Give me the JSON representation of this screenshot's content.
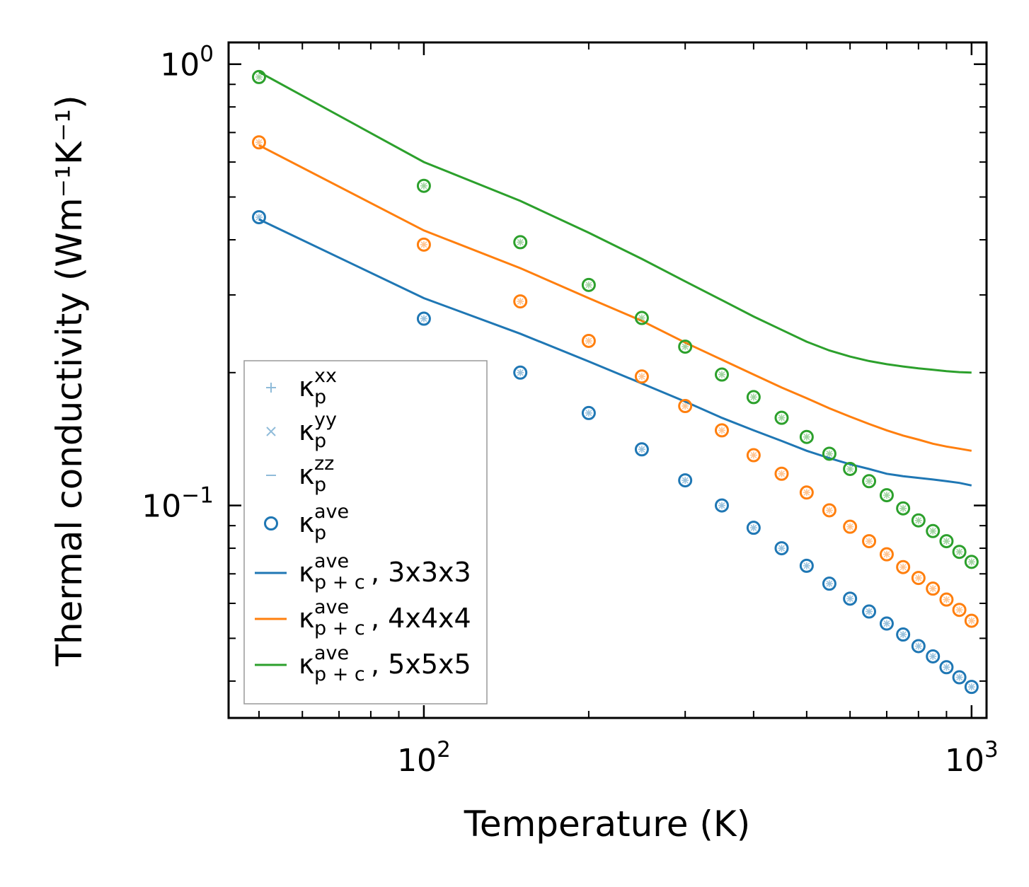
{
  "chart_data": {
    "type": "scatter",
    "title": "",
    "xlabel": "Temperature (K)",
    "ylabel": "Thermal conductivity (Wm⁻¹K⁻¹)",
    "xscale": "log",
    "yscale": "log",
    "xlim": [
      44,
      1065
    ],
    "ylim": [
      0.033,
      1.12
    ],
    "x_ticks": [
      {
        "value": 100,
        "base": "10",
        "exp": "2"
      },
      {
        "value": 1000,
        "base": "10",
        "exp": "3"
      }
    ],
    "y_ticks": [
      {
        "value": 0.1,
        "base": "10",
        "exp": "−1"
      },
      {
        "value": 1,
        "base": "10",
        "exp": "0"
      }
    ],
    "colors": {
      "c3": "#1f77b4",
      "c4": "#ff7f0e",
      "c5": "#2ca02c"
    },
    "line_series": [
      {
        "name": "κp+c ave, 3x3x3",
        "color": "#1f77b4",
        "x": [
          50,
          100,
          150,
          200,
          250,
          300,
          350,
          400,
          450,
          500,
          550,
          600,
          650,
          700,
          750,
          800,
          850,
          900,
          950,
          1000
        ],
        "y": [
          0.445,
          0.295,
          0.245,
          0.212,
          0.189,
          0.172,
          0.158,
          0.148,
          0.14,
          0.133,
          0.128,
          0.124,
          0.121,
          0.118,
          0.1165,
          0.1155,
          0.1145,
          0.1135,
          0.1125,
          0.111
        ]
      },
      {
        "name": "κp+c ave, 4x4x4",
        "color": "#ff7f0e",
        "x": [
          50,
          100,
          150,
          200,
          250,
          300,
          350,
          400,
          450,
          500,
          550,
          600,
          650,
          700,
          750,
          800,
          850,
          900,
          950,
          1000
        ],
        "y": [
          0.655,
          0.42,
          0.345,
          0.295,
          0.262,
          0.234,
          0.214,
          0.198,
          0.185,
          0.175,
          0.166,
          0.159,
          0.153,
          0.148,
          0.144,
          0.141,
          0.138,
          0.136,
          0.1345,
          0.133
        ]
      },
      {
        "name": "κp+c ave, 5x5x5",
        "color": "#2ca02c",
        "x": [
          50,
          100,
          150,
          200,
          250,
          300,
          350,
          400,
          450,
          500,
          550,
          600,
          650,
          700,
          750,
          800,
          850,
          900,
          950,
          1000
        ],
        "y": [
          0.96,
          0.6,
          0.49,
          0.415,
          0.362,
          0.322,
          0.292,
          0.268,
          0.25,
          0.235,
          0.2245,
          0.2175,
          0.2125,
          0.209,
          0.2065,
          0.2045,
          0.203,
          0.2015,
          0.2005,
          0.2
        ]
      }
    ],
    "marker_series": [
      {
        "name": "κp ave, 3x3x3",
        "color": "#1f77b4",
        "x": [
          50,
          100,
          150,
          200,
          250,
          300,
          350,
          400,
          450,
          500,
          550,
          600,
          650,
          700,
          750,
          800,
          850,
          900,
          950,
          1000
        ],
        "y": [
          0.45,
          0.265,
          0.2,
          0.162,
          0.134,
          0.114,
          0.1,
          0.089,
          0.08,
          0.073,
          0.0665,
          0.0615,
          0.0575,
          0.054,
          0.051,
          0.048,
          0.0455,
          0.043,
          0.0408,
          0.0388
        ]
      },
      {
        "name": "κp ave, 4x4x4",
        "color": "#ff7f0e",
        "x": [
          50,
          100,
          150,
          200,
          250,
          300,
          350,
          400,
          450,
          500,
          550,
          600,
          650,
          700,
          750,
          800,
          850,
          900,
          950,
          1000
        ],
        "y": [
          0.665,
          0.39,
          0.29,
          0.236,
          0.196,
          0.168,
          0.148,
          0.13,
          0.118,
          0.107,
          0.0975,
          0.0895,
          0.083,
          0.0775,
          0.0725,
          0.0685,
          0.0648,
          0.0612,
          0.058,
          0.0548
        ]
      },
      {
        "name": "κp ave, 5x5x5",
        "color": "#2ca02c",
        "x": [
          50,
          100,
          150,
          200,
          250,
          300,
          350,
          400,
          450,
          500,
          550,
          600,
          650,
          700,
          750,
          800,
          850,
          900,
          950,
          1000
        ],
        "y": [
          0.935,
          0.53,
          0.395,
          0.316,
          0.266,
          0.229,
          0.198,
          0.176,
          0.158,
          0.143,
          0.131,
          0.121,
          0.1135,
          0.1055,
          0.0985,
          0.0925,
          0.0875,
          0.083,
          0.0785,
          0.0745
        ]
      }
    ],
    "legend": {
      "location": "lower-left",
      "items": [
        {
          "kind": "plus",
          "main": "κ",
          "sup": "xx",
          "sub": "p",
          "tail": "",
          "color": "#1f77b4"
        },
        {
          "kind": "cross",
          "main": "κ",
          "sup": "yy",
          "sub": "p",
          "tail": "",
          "color": "#1f77b4"
        },
        {
          "kind": "dash",
          "main": "κ",
          "sup": "zz",
          "sub": "p",
          "tail": "",
          "color": "#1f77b4"
        },
        {
          "kind": "circle",
          "main": "κ",
          "sup": "ave",
          "sub": "p",
          "tail": "",
          "color": "#1f77b4"
        },
        {
          "kind": "line",
          "main": "κ",
          "sup": "ave",
          "sub": "p + c",
          "tail": ", 3x3x3",
          "color": "#1f77b4"
        },
        {
          "kind": "line",
          "main": "κ",
          "sup": "ave",
          "sub": "p + c",
          "tail": ", 4x4x4",
          "color": "#ff7f0e"
        },
        {
          "kind": "line",
          "main": "κ",
          "sup": "ave",
          "sub": "p + c",
          "tail": ", 5x5x5",
          "color": "#2ca02c"
        }
      ]
    }
  }
}
